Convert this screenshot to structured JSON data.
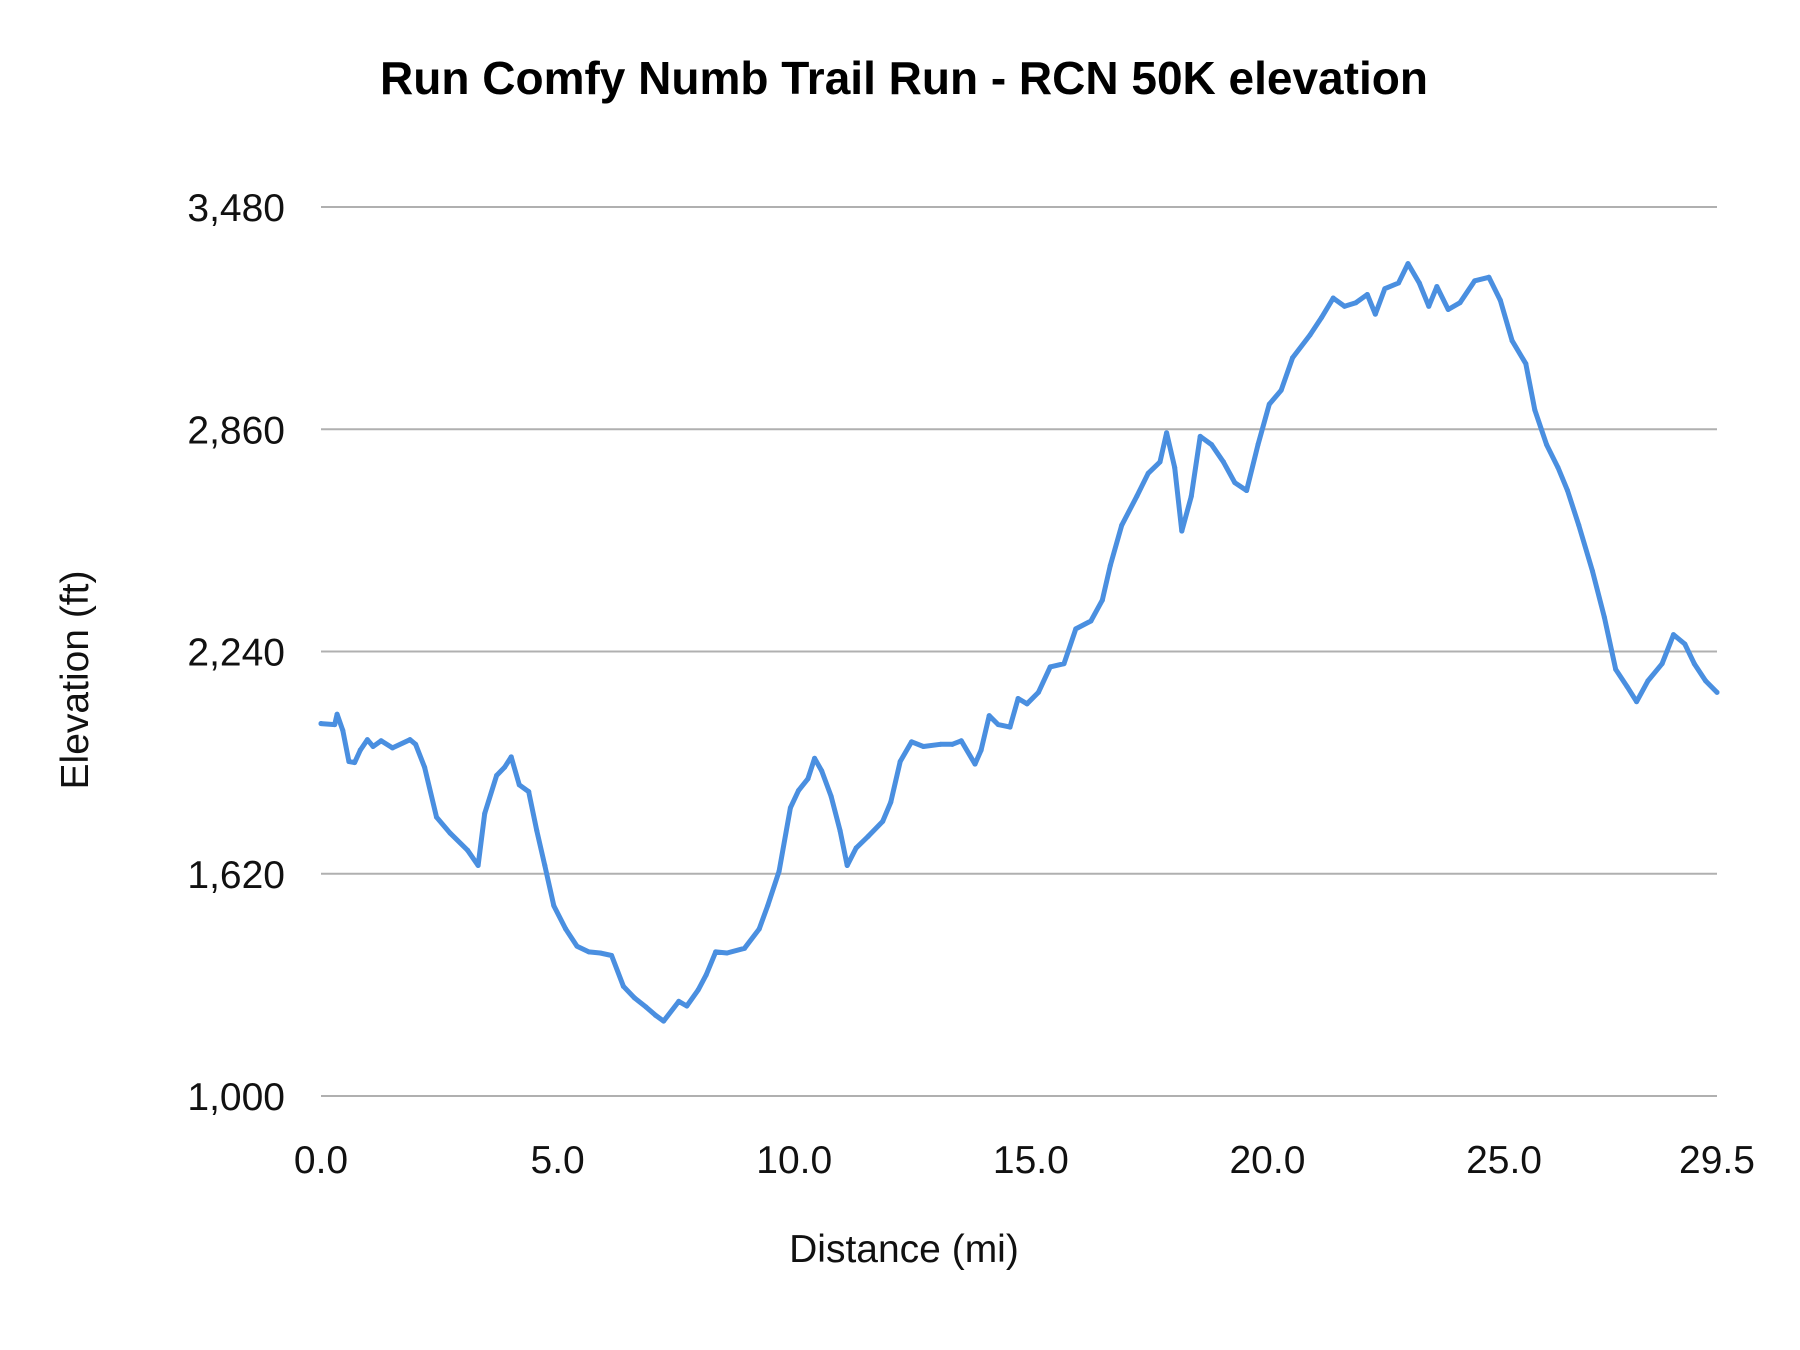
{
  "chart_data": {
    "type": "line",
    "title": "Run Comfy Numb Trail Run - RCN 50K  elevation",
    "xlabel": "Distance (mi)",
    "ylabel": "Elevation (ft)",
    "xlim": [
      0,
      29.5
    ],
    "ylim": [
      1000,
      3480
    ],
    "x_ticks": [
      "0.0",
      "5.0",
      "10.0",
      "15.0",
      "20.0",
      "25.0",
      "29.5"
    ],
    "x_tick_values": [
      0,
      5,
      10,
      15,
      20,
      25,
      29.5
    ],
    "y_ticks": [
      "1,000",
      "1,620",
      "2,240",
      "2,860",
      "3,480"
    ],
    "y_tick_values": [
      1000,
      1620,
      2240,
      2860,
      3480
    ],
    "grid": "horizontal",
    "legend": "none",
    "colors": {
      "line": "#4a8fe0",
      "grid": "#b0b0b0"
    },
    "series": [
      {
        "x": [
          0,
          0.29,
          0.34,
          0.46,
          0.59,
          0.71,
          0.83,
          0.98,
          1.1,
          1.27,
          1.51,
          1.88,
          2.0,
          2.19,
          2.44,
          2.73,
          3.1,
          3.32,
          3.46,
          3.71,
          3.88,
          4.02,
          4.19,
          4.39,
          4.56,
          4.73,
          4.92,
          5.17,
          5.41,
          5.66,
          5.9,
          6.14,
          6.39,
          6.63,
          6.87,
          7.07,
          7.24,
          7.56,
          7.73,
          7.97,
          8.14,
          8.34,
          8.58,
          8.95,
          9.26,
          9.44,
          9.68,
          9.92,
          10.09,
          10.29,
          10.43,
          10.58,
          10.78,
          10.97,
          11.12,
          11.31,
          11.56,
          11.87,
          12.04,
          12.24,
          12.48,
          12.73,
          13.09,
          13.34,
          13.53,
          13.82,
          13.95,
          14.12,
          14.31,
          14.56,
          14.73,
          14.92,
          15.16,
          15.41,
          15.7,
          15.95,
          16.27,
          16.51,
          16.68,
          16.92,
          17.24,
          17.48,
          17.73,
          17.87,
          18.04,
          18.19,
          18.39,
          18.58,
          18.82,
          19.07,
          19.31,
          19.56,
          19.8,
          20.04,
          20.29,
          20.53,
          20.9,
          21.14,
          21.39,
          21.63,
          21.87,
          22.11,
          22.28,
          22.48,
          22.77,
          22.97,
          23.21,
          23.41,
          23.58,
          23.82,
          24.07,
          24.38,
          24.68,
          24.92,
          25.17,
          25.46,
          25.65,
          25.9,
          26.14,
          26.34,
          26.58,
          26.87,
          27.12,
          27.36,
          27.6,
          27.8,
          28.04,
          28.34,
          28.58,
          28.82,
          29.02,
          29.26,
          29.5
        ],
        "y": [
          2039,
          2036,
          2065,
          2020,
          1933,
          1930,
          1965,
          1994,
          1975,
          1991,
          1971,
          1994,
          1981,
          1917,
          1778,
          1733,
          1685,
          1643,
          1788,
          1894,
          1917,
          1946,
          1868,
          1849,
          1740,
          1643,
          1531,
          1466,
          1418,
          1402,
          1399,
          1392,
          1306,
          1273,
          1248,
          1225,
          1209,
          1264,
          1251,
          1296,
          1338,
          1402,
          1399,
          1412,
          1466,
          1531,
          1627,
          1804,
          1852,
          1885,
          1942,
          1907,
          1836,
          1740,
          1643,
          1692,
          1724,
          1766,
          1820,
          1933,
          1988,
          1975,
          1981,
          1981,
          1991,
          1926,
          1965,
          2061,
          2036,
          2029,
          2109,
          2094,
          2126,
          2197,
          2206,
          2303,
          2325,
          2383,
          2480,
          2592,
          2673,
          2737,
          2769,
          2850,
          2753,
          2576,
          2673,
          2840,
          2817,
          2769,
          2711,
          2689,
          2817,
          2930,
          2969,
          3059,
          3123,
          3171,
          3226,
          3203,
          3213,
          3236,
          3181,
          3252,
          3268,
          3322,
          3268,
          3203,
          3258,
          3194,
          3213,
          3274,
          3284,
          3220,
          3107,
          3043,
          2914,
          2817,
          2753,
          2689,
          2592,
          2464,
          2335,
          2190,
          2142,
          2100,
          2158,
          2206,
          2287,
          2261,
          2206,
          2158,
          2126
        ]
      }
    ]
  }
}
